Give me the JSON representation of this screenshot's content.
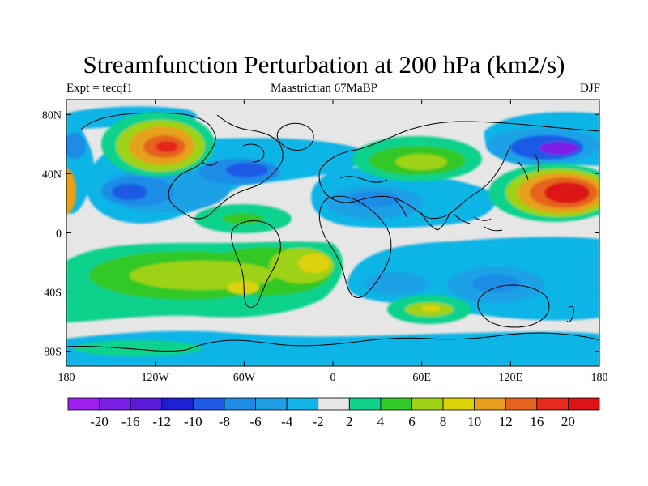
{
  "title": "Streamfunction Perturbation at 200 hPa (km2/s)",
  "left_label": "Expt = tecqf1",
  "center_label": "Maastrictian 67MaBP",
  "right_label": "DJF",
  "chart_data": {
    "type": "heatmap",
    "title": "Streamfunction Perturbation at 200 hPa (km2/s)",
    "subtitle_left": "Expt = tecqf1",
    "subtitle_center": "Maastrictian 67MaBP",
    "subtitle_right": "DJF",
    "xlim": [
      -180,
      180
    ],
    "ylim": [
      -90,
      90
    ],
    "x_ticks": [
      {
        "value": -180,
        "label": "180"
      },
      {
        "value": -120,
        "label": "120W"
      },
      {
        "value": -60,
        "label": "60W"
      },
      {
        "value": 0,
        "label": "0"
      },
      {
        "value": 60,
        "label": "60E"
      },
      {
        "value": 120,
        "label": "120E"
      },
      {
        "value": 180,
        "label": "180"
      }
    ],
    "y_ticks": [
      {
        "value": 80,
        "label": "80N"
      },
      {
        "value": 40,
        "label": "40N"
      },
      {
        "value": 0,
        "label": "0"
      },
      {
        "value": -40,
        "label": "40S"
      },
      {
        "value": -80,
        "label": "80S"
      }
    ],
    "colorbar": {
      "levels": [
        "-20",
        "-16",
        "-12",
        "-10",
        "-8",
        "-6",
        "-4",
        "-2",
        "2",
        "4",
        "6",
        "8",
        "10",
        "12",
        "16",
        "20"
      ],
      "colors": [
        "#a020f0",
        "#7b1ee6",
        "#5a1ad8",
        "#1e1ed2",
        "#1e5ae6",
        "#1e8ce6",
        "#1ea0e6",
        "#10b4e6",
        "#e6e6e6",
        "#10d28c",
        "#32c828",
        "#9ed214",
        "#dcd20a",
        "#e6a01e",
        "#e6641e",
        "#e6281e",
        "#dc1414"
      ]
    },
    "features": [
      {
        "kind": "neg",
        "lon": -105,
        "lat": 35,
        "value": -10
      },
      {
        "kind": "neg",
        "lon": -150,
        "lat": 33,
        "value": -12
      },
      {
        "kind": "neg",
        "lon": -178,
        "lat": 60,
        "value": -8
      },
      {
        "kind": "neg",
        "lon": 155,
        "lat": 55,
        "value": -14
      },
      {
        "kind": "neg",
        "lon": 35,
        "lat": 22,
        "value": -10
      },
      {
        "kind": "neg",
        "lon": 110,
        "lat": -35,
        "value": -10
      },
      {
        "kind": "neg",
        "lon": -30,
        "lat": -85,
        "value": -4
      },
      {
        "kind": "pos",
        "lon": -115,
        "lat": 58,
        "value": 16
      },
      {
        "kind": "pos",
        "lon": 155,
        "lat": 25,
        "value": 20
      },
      {
        "kind": "pos",
        "lon": -178,
        "lat": 28,
        "value": 10
      },
      {
        "kind": "pos",
        "lon": 40,
        "lat": 50,
        "value": 8
      },
      {
        "kind": "pos",
        "lon": -20,
        "lat": -25,
        "value": 10
      },
      {
        "kind": "pos",
        "lon": -60,
        "lat": -35,
        "value": 8
      },
      {
        "kind": "pos",
        "lon": -110,
        "lat": -25,
        "value": 6
      },
      {
        "kind": "pos",
        "lon": 60,
        "lat": -52,
        "value": 6
      },
      {
        "kind": "pos",
        "lon": -60,
        "lat": 10,
        "value": 4
      }
    ]
  }
}
